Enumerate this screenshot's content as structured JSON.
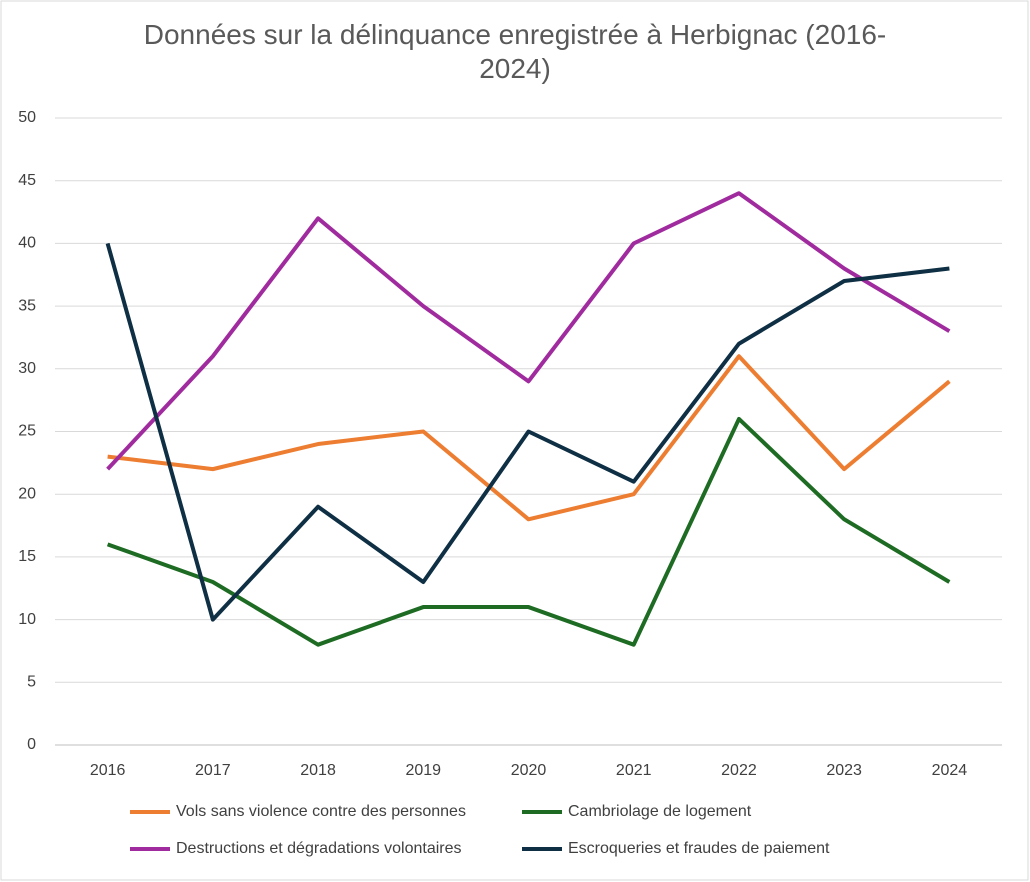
{
  "chart_data": {
    "type": "line",
    "title": "Données sur la délinquance enregistrée à Herbignac (2016-2024)",
    "categories": [
      "2016",
      "2017",
      "2018",
      "2019",
      "2020",
      "2021",
      "2022",
      "2023",
      "2024"
    ],
    "series": [
      {
        "name": "Vols sans violence contre des personnes",
        "color": "#ed7d31",
        "values": [
          23,
          22,
          24,
          25,
          18,
          20,
          31,
          22,
          29
        ]
      },
      {
        "name": "Cambriolage de logement",
        "color": "#1e6b23",
        "values": [
          16,
          13,
          8,
          11,
          11,
          8,
          26,
          18,
          13
        ]
      },
      {
        "name": "Destructions et dégradations volontaires",
        "color": "#a02b9e",
        "values": [
          22,
          31,
          42,
          35,
          29,
          40,
          44,
          38,
          33
        ]
      },
      {
        "name": "Escroqueries et fraudes de paiement",
        "color": "#0e2f44",
        "values": [
          40,
          10,
          19,
          13,
          25,
          21,
          32,
          37,
          38
        ]
      }
    ],
    "ylim": [
      0,
      50
    ],
    "yticks": [
      0,
      5,
      10,
      15,
      20,
      25,
      30,
      35,
      40,
      45,
      50
    ],
    "grid": true
  }
}
